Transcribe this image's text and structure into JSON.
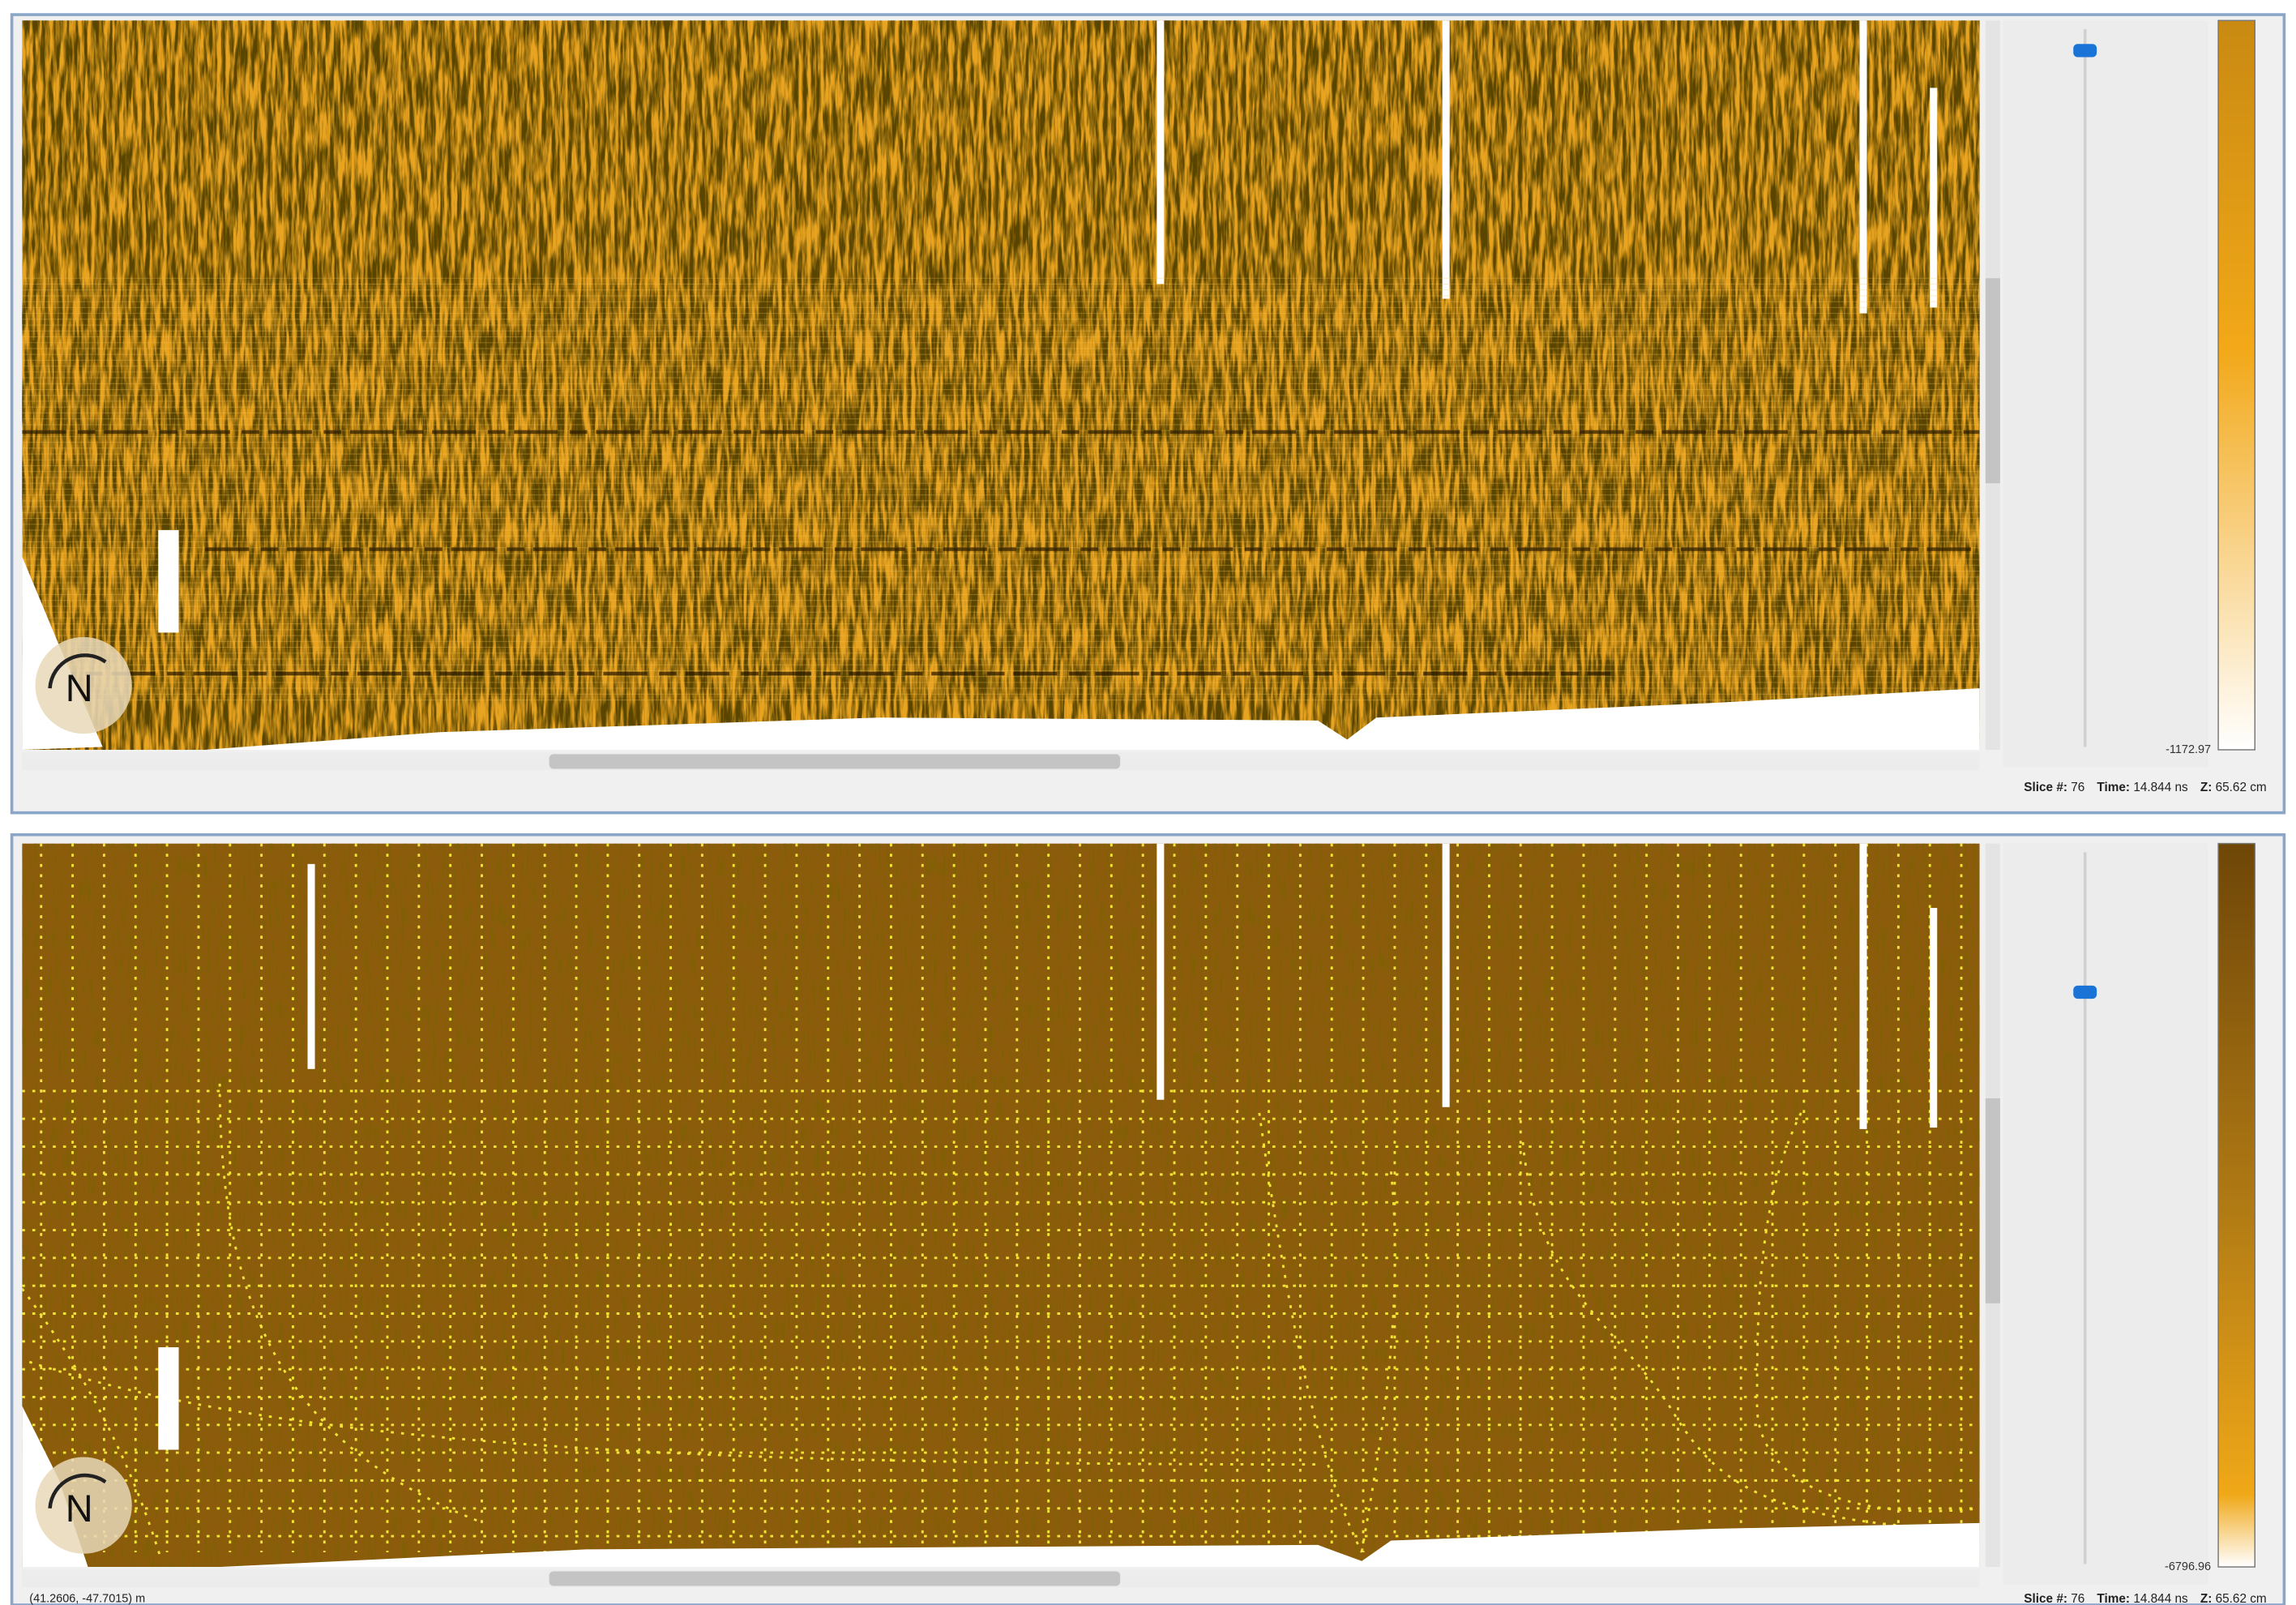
{
  "panels": [
    {
      "compass": "N",
      "colorbar_min": "-1172.97",
      "status": {
        "slice_label": "Slice #:",
        "slice": "76",
        "time_label": "Time:",
        "time": "14.844 ns",
        "z_label": "Z:",
        "z": "65.62 cm"
      }
    },
    {
      "compass": "N",
      "colorbar_min": "-6796.96",
      "status": {
        "slice_label": "Slice #:",
        "slice": "76",
        "time_label": "Time:",
        "time": "14.844 ns",
        "z_label": "Z:",
        "z": "65.62 cm"
      }
    }
  ],
  "cursor_position": "(41.2606, -47.7015) m"
}
